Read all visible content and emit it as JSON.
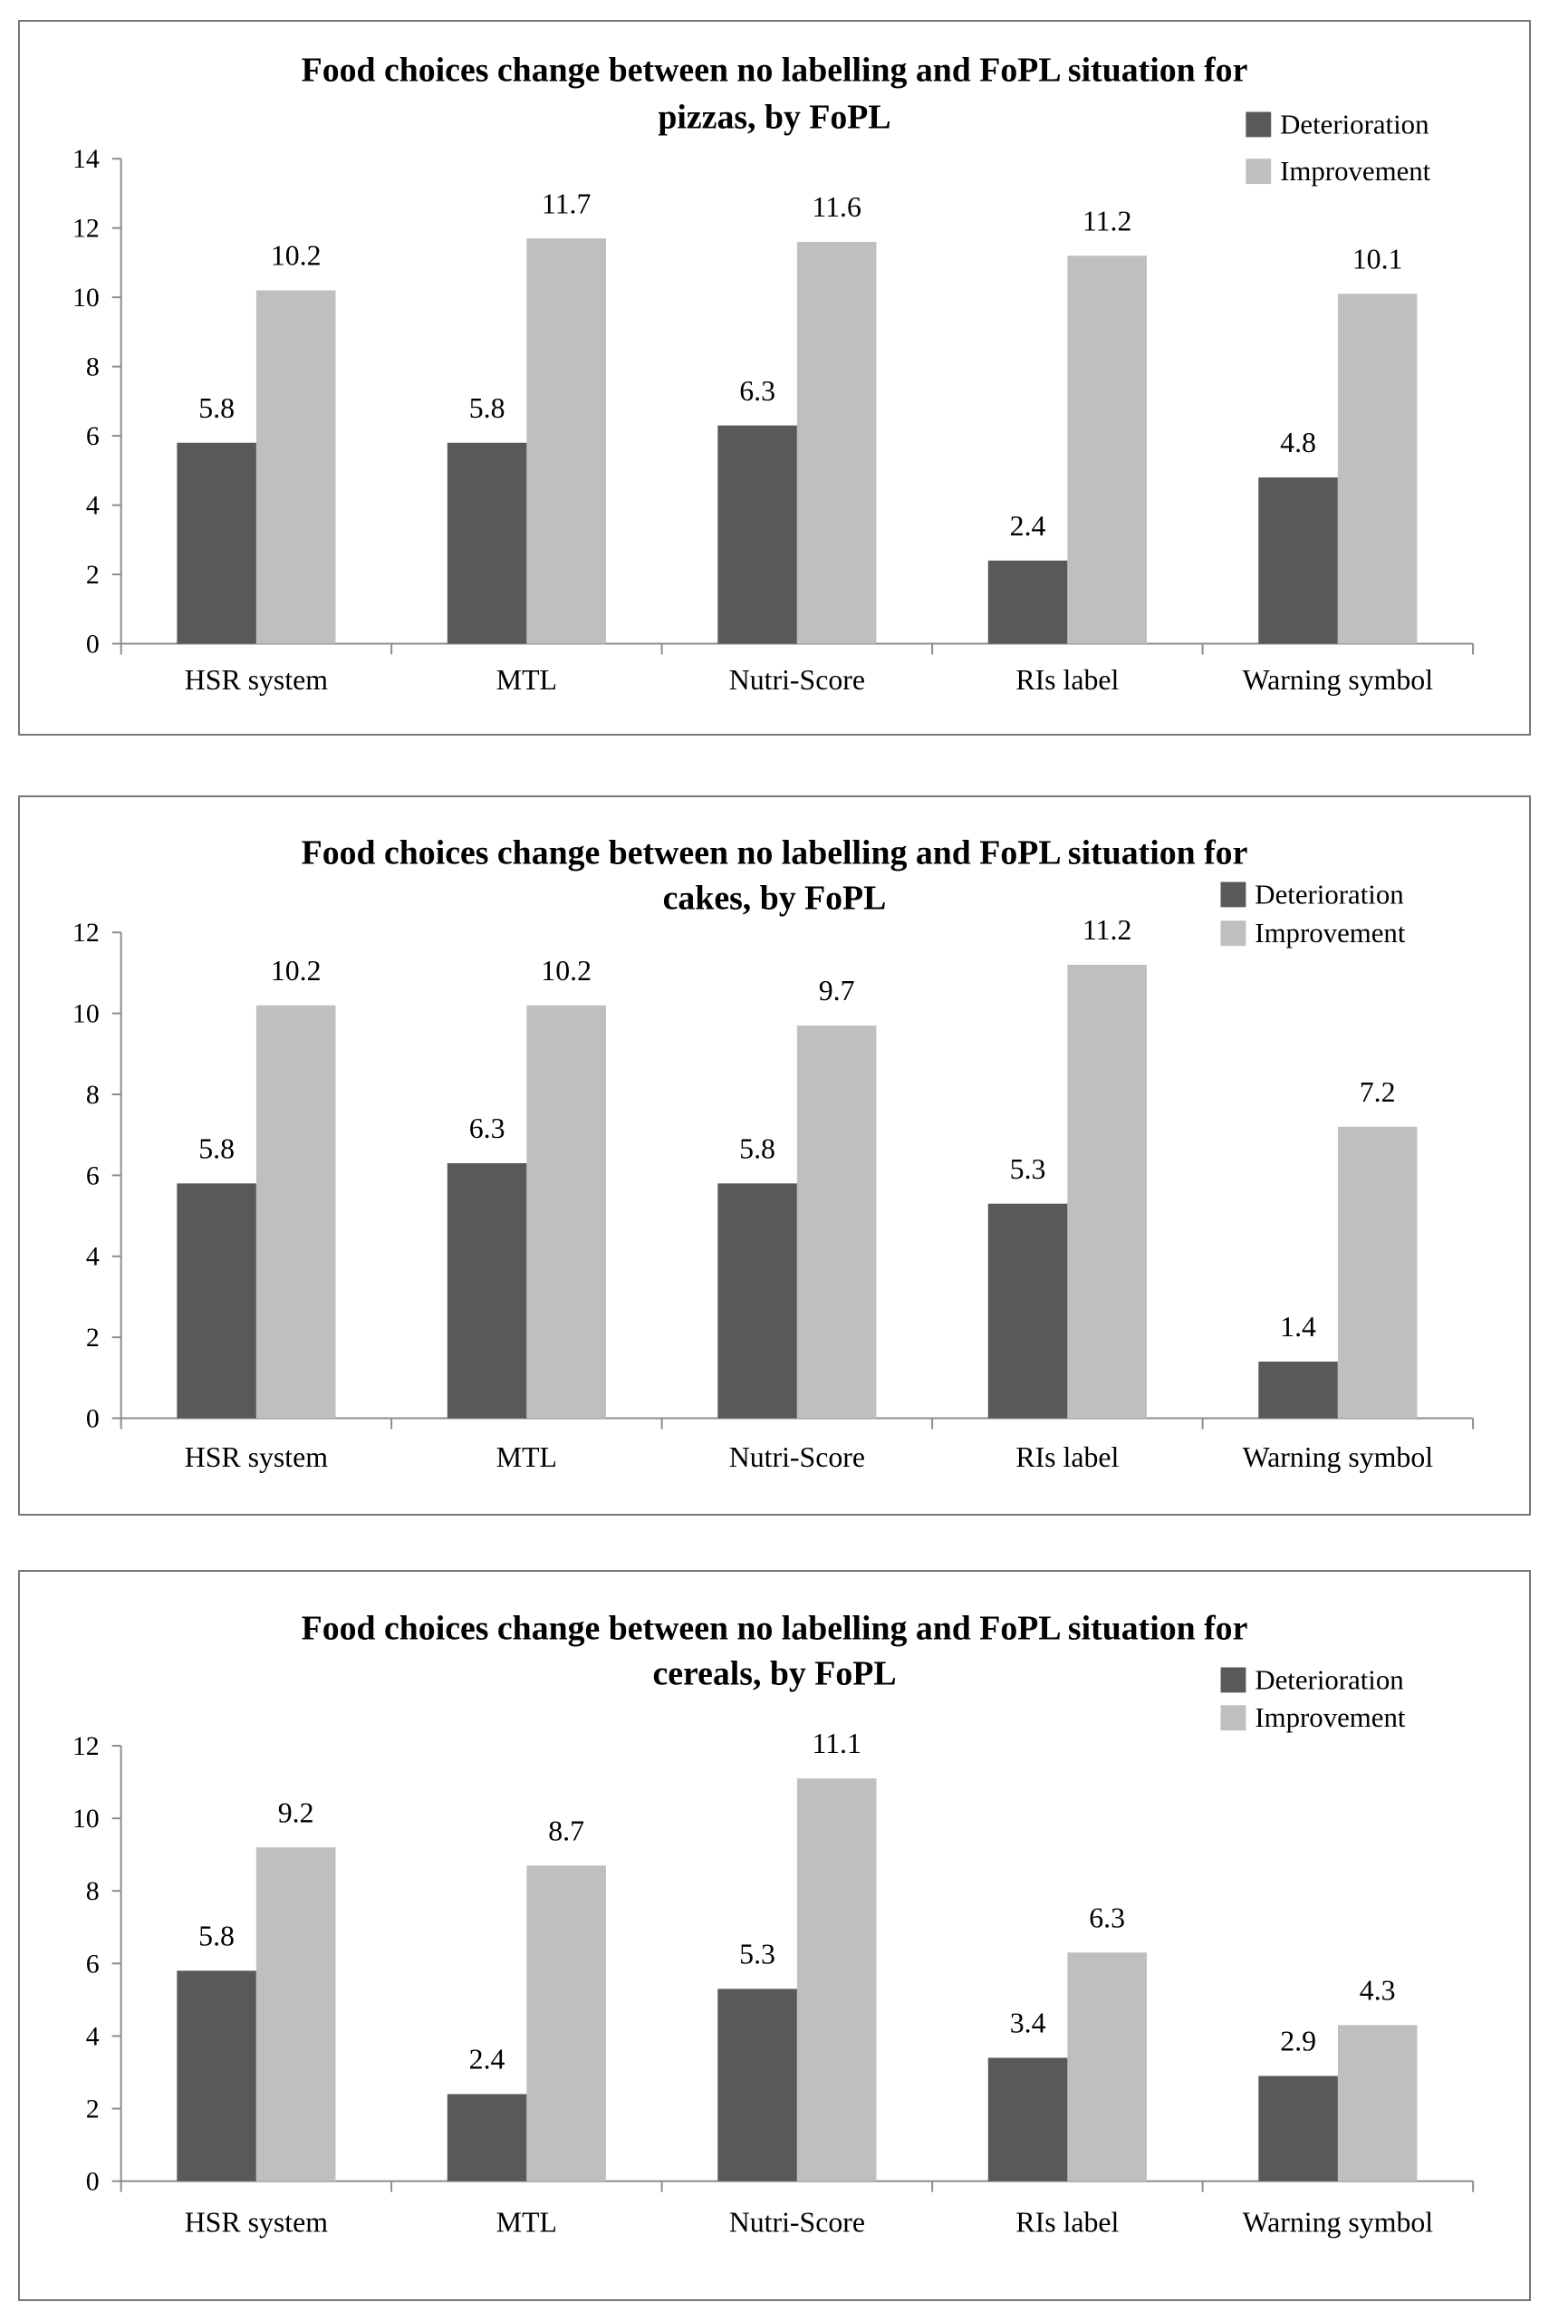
{
  "chart_data": [
    {
      "type": "bar",
      "title_lines": [
        "Food choices change between no labelling and FoPL situation for",
        "pizzas, by FoPL"
      ],
      "categories": [
        "HSR system",
        "MTL",
        "Nutri-Score",
        "RIs label",
        "Warning symbol"
      ],
      "series": [
        {
          "name": "Deterioration",
          "values": [
            5.8,
            5.8,
            6.3,
            2.4,
            4.8
          ],
          "color": "#595959"
        },
        {
          "name": "Improvement",
          "values": [
            10.2,
            11.7,
            11.6,
            11.2,
            10.1
          ],
          "color": "#bfbfbf"
        }
      ],
      "ylim": [
        0,
        14
      ],
      "yticks": [
        "0",
        "2",
        "4",
        "6",
        "8",
        "10",
        "12",
        "14"
      ],
      "legend_position": "top-right",
      "xlabel": "",
      "ylabel": ""
    },
    {
      "type": "bar",
      "title_lines": [
        "Food choices change between no labelling and FoPL situation for",
        "cakes, by FoPL"
      ],
      "categories": [
        "HSR system",
        "MTL",
        "Nutri-Score",
        "RIs label",
        "Warning symbol"
      ],
      "series": [
        {
          "name": "Deterioration",
          "values": [
            5.8,
            6.3,
            5.8,
            5.3,
            1.4
          ],
          "color": "#595959"
        },
        {
          "name": "Improvement",
          "values": [
            10.2,
            10.2,
            9.7,
            11.2,
            7.2
          ],
          "color": "#bfbfbf"
        }
      ],
      "ylim": [
        0,
        12
      ],
      "yticks": [
        "0",
        "2",
        "4",
        "6",
        "8",
        "10",
        "12"
      ],
      "legend_position": "top-right",
      "xlabel": "",
      "ylabel": ""
    },
    {
      "type": "bar",
      "title_lines": [
        "Food choices change between no labelling and FoPL situation for",
        "cereals, by FoPL"
      ],
      "categories": [
        "HSR system",
        "MTL",
        "Nutri-Score",
        "RIs label",
        "Warning symbol"
      ],
      "series": [
        {
          "name": "Deterioration",
          "values": [
            5.8,
            2.4,
            5.3,
            3.4,
            2.9
          ],
          "color": "#595959"
        },
        {
          "name": "Improvement",
          "values": [
            9.2,
            8.7,
            11.1,
            6.3,
            4.3
          ],
          "color": "#bfbfbf"
        }
      ],
      "ylim": [
        0,
        12
      ],
      "yticks": [
        "0",
        "2",
        "4",
        "6",
        "8",
        "10",
        "12"
      ],
      "legend_position": "top-right",
      "xlabel": "",
      "ylabel": ""
    }
  ]
}
